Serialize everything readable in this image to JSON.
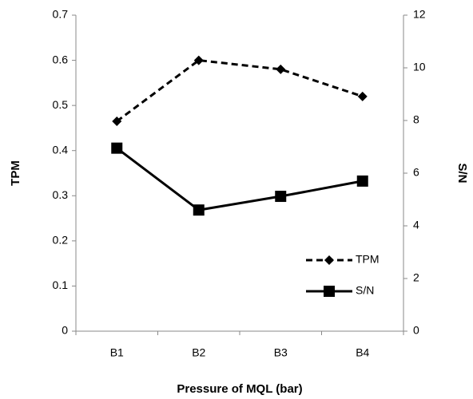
{
  "chart_data": {
    "type": "line",
    "x_label": "Pressure of MQL (bar)",
    "y_label": "TPM",
    "y2_label": "S/N",
    "categories": [
      "B1",
      "B2",
      "B3",
      "B4"
    ],
    "series": [
      {
        "name": "TPM",
        "color": "#000000",
        "line_style": "dashed",
        "marker": "diamond",
        "axis": "y",
        "values": [
          0.465,
          0.6,
          0.58,
          0.52
        ]
      },
      {
        "name": "S/N",
        "color": "#000000",
        "line_style": "solid",
        "marker": "square",
        "axis": "y2",
        "values": [
          6.95,
          4.6,
          5.12,
          5.7
        ]
      }
    ],
    "ylim": [
      0,
      0.7
    ],
    "yticks": [
      0,
      0.1,
      0.2,
      0.3,
      0.4,
      0.5,
      0.6,
      0.7
    ],
    "y2lim": [
      0,
      12
    ],
    "y2ticks": [
      0,
      2,
      4,
      6,
      8,
      10,
      12
    ],
    "grid": false,
    "legend": "lower right"
  }
}
